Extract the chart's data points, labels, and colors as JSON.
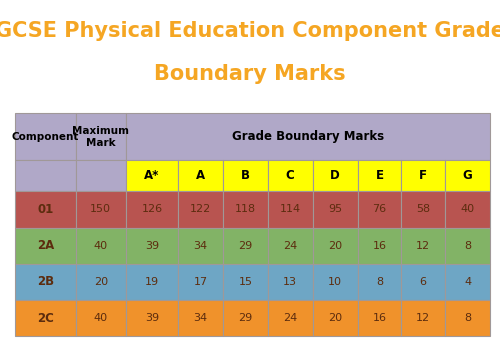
{
  "title_line1": "GCSE Physical Education Component Grade",
  "title_line2": "Boundary Marks",
  "title_color": "#F5A623",
  "title_fontsize": 15,
  "col_headers_row2": [
    "A*",
    "A",
    "B",
    "C",
    "D",
    "E",
    "F",
    "G"
  ],
  "rows": [
    {
      "label": "01",
      "max": "150",
      "values": [
        "126",
        "122",
        "118",
        "114",
        "95",
        "76",
        "58",
        "40"
      ],
      "row_color": "#B85450"
    },
    {
      "label": "2A",
      "max": "40",
      "values": [
        "39",
        "34",
        "29",
        "24",
        "20",
        "16",
        "12",
        "8"
      ],
      "row_color": "#82B366"
    },
    {
      "label": "2B",
      "max": "20",
      "values": [
        "19",
        "17",
        "15",
        "13",
        "10",
        "8",
        "6",
        "4"
      ],
      "row_color": "#6EA6C5"
    },
    {
      "label": "2C",
      "max": "40",
      "values": [
        "39",
        "34",
        "29",
        "24",
        "20",
        "16",
        "12",
        "8"
      ],
      "row_color": "#F0922B"
    }
  ],
  "header_bg": "#B0A8C8",
  "grade_header_bg": "#FFFF00",
  "background": "#FFFFFF",
  "border_color": "#A09898",
  "text_color_dark": "#5C2C0E",
  "header_text_color": "#000000"
}
